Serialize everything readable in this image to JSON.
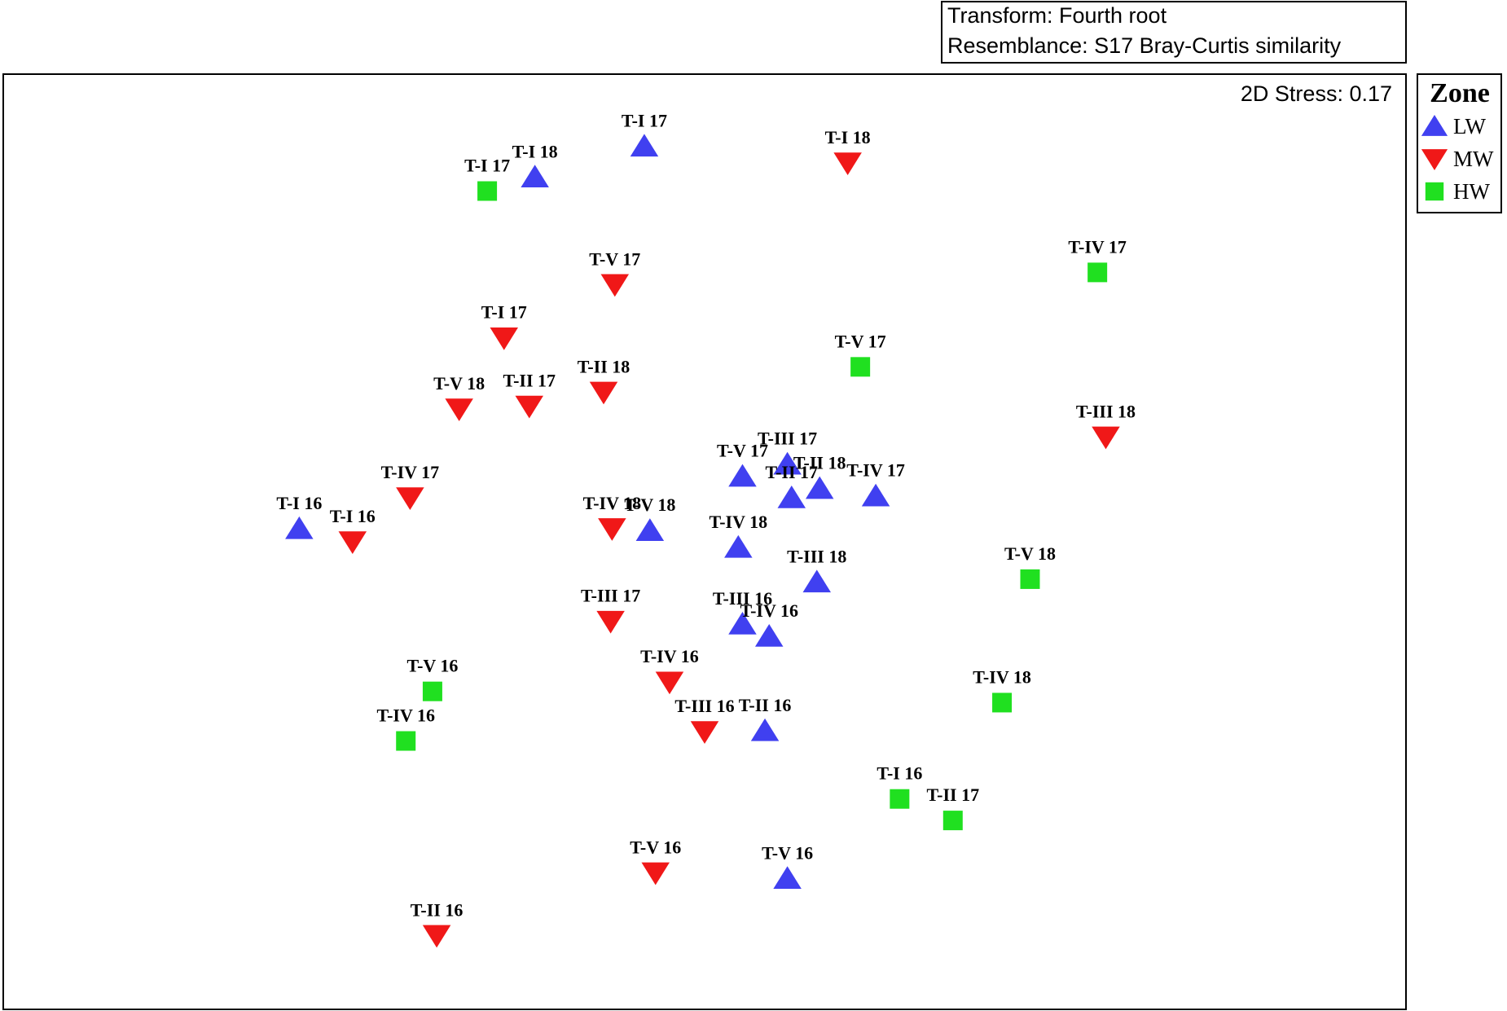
{
  "chart_data": {
    "type": "scatter",
    "title": "",
    "xlabel": "",
    "ylabel": "",
    "info_lines": [
      "Transform: Fourth root",
      "Resemblance: S17 Bray-Curtis similarity"
    ],
    "stress_label": "2D Stress: 0.17",
    "legend": {
      "title": "Zone",
      "position": "right",
      "entries": [
        {
          "name": "LW",
          "shape": "triangle-up",
          "color": "#4040F0"
        },
        {
          "name": "MW",
          "shape": "triangle-down",
          "color": "#F01818"
        },
        {
          "name": "HW",
          "shape": "square",
          "color": "#20E020"
        }
      ]
    },
    "xlim": [
      0,
      1000
    ],
    "ylim": [
      0,
      1000
    ],
    "series": [
      {
        "name": "LW",
        "points": [
          {
            "label": "T-I 17",
            "x": 457,
            "y": 923
          },
          {
            "label": "T-I 18",
            "x": 379,
            "y": 890
          },
          {
            "label": "T-V 17",
            "x": 527,
            "y": 570
          },
          {
            "label": "T-III 17",
            "x": 559,
            "y": 583
          },
          {
            "label": "T-II 18",
            "x": 582,
            "y": 557
          },
          {
            "label": "T-II 17",
            "x": 562,
            "y": 547
          },
          {
            "label": "T-IV 17",
            "x": 622,
            "y": 549
          },
          {
            "label": "T-I 16",
            "x": 211,
            "y": 514
          },
          {
            "label": "T-V 18",
            "x": 461,
            "y": 512
          },
          {
            "label": "T-IV 18",
            "x": 524,
            "y": 494
          },
          {
            "label": "T-III 18",
            "x": 580,
            "y": 457
          },
          {
            "label": "T-III 16",
            "x": 527,
            "y": 412
          },
          {
            "label": "T-IV 16",
            "x": 546,
            "y": 399
          },
          {
            "label": "T-II 16",
            "x": 543,
            "y": 298
          },
          {
            "label": "T-V 16",
            "x": 559,
            "y": 140
          }
        ]
      },
      {
        "name": "MW",
        "points": [
          {
            "label": "T-I 18",
            "x": 602,
            "y": 905
          },
          {
            "label": "T-V 17",
            "x": 436,
            "y": 775
          },
          {
            "label": "T-I 17",
            "x": 357,
            "y": 718
          },
          {
            "label": "T-II 18",
            "x": 428,
            "y": 660
          },
          {
            "label": "T-II 17",
            "x": 375,
            "y": 645
          },
          {
            "label": "T-V 18",
            "x": 325,
            "y": 642
          },
          {
            "label": "T-III 18",
            "x": 786,
            "y": 612
          },
          {
            "label": "T-IV 17",
            "x": 290,
            "y": 547
          },
          {
            "label": "T-I 16",
            "x": 249,
            "y": 500
          },
          {
            "label": "T-IV 18",
            "x": 434,
            "y": 514
          },
          {
            "label": "T-III 17",
            "x": 433,
            "y": 415
          },
          {
            "label": "T-IV 16",
            "x": 475,
            "y": 350
          },
          {
            "label": "T-III 16",
            "x": 500,
            "y": 297
          },
          {
            "label": "T-V 16",
            "x": 465,
            "y": 146
          },
          {
            "label": "T-II 16",
            "x": 309,
            "y": 79
          }
        ]
      },
      {
        "name": "HW",
        "points": [
          {
            "label": "T-I 17",
            "x": 345,
            "y": 875
          },
          {
            "label": "T-IV 17",
            "x": 780,
            "y": 788
          },
          {
            "label": "T-V 17",
            "x": 611,
            "y": 687
          },
          {
            "label": "T-V 18",
            "x": 732,
            "y": 460
          },
          {
            "label": "T-V 16",
            "x": 306,
            "y": 340
          },
          {
            "label": "T-IV 18",
            "x": 712,
            "y": 328
          },
          {
            "label": "T-IV 16",
            "x": 287,
            "y": 287
          },
          {
            "label": "T-I 16",
            "x": 639,
            "y": 225
          },
          {
            "label": "T-II 17",
            "x": 677,
            "y": 202
          }
        ]
      }
    ]
  }
}
